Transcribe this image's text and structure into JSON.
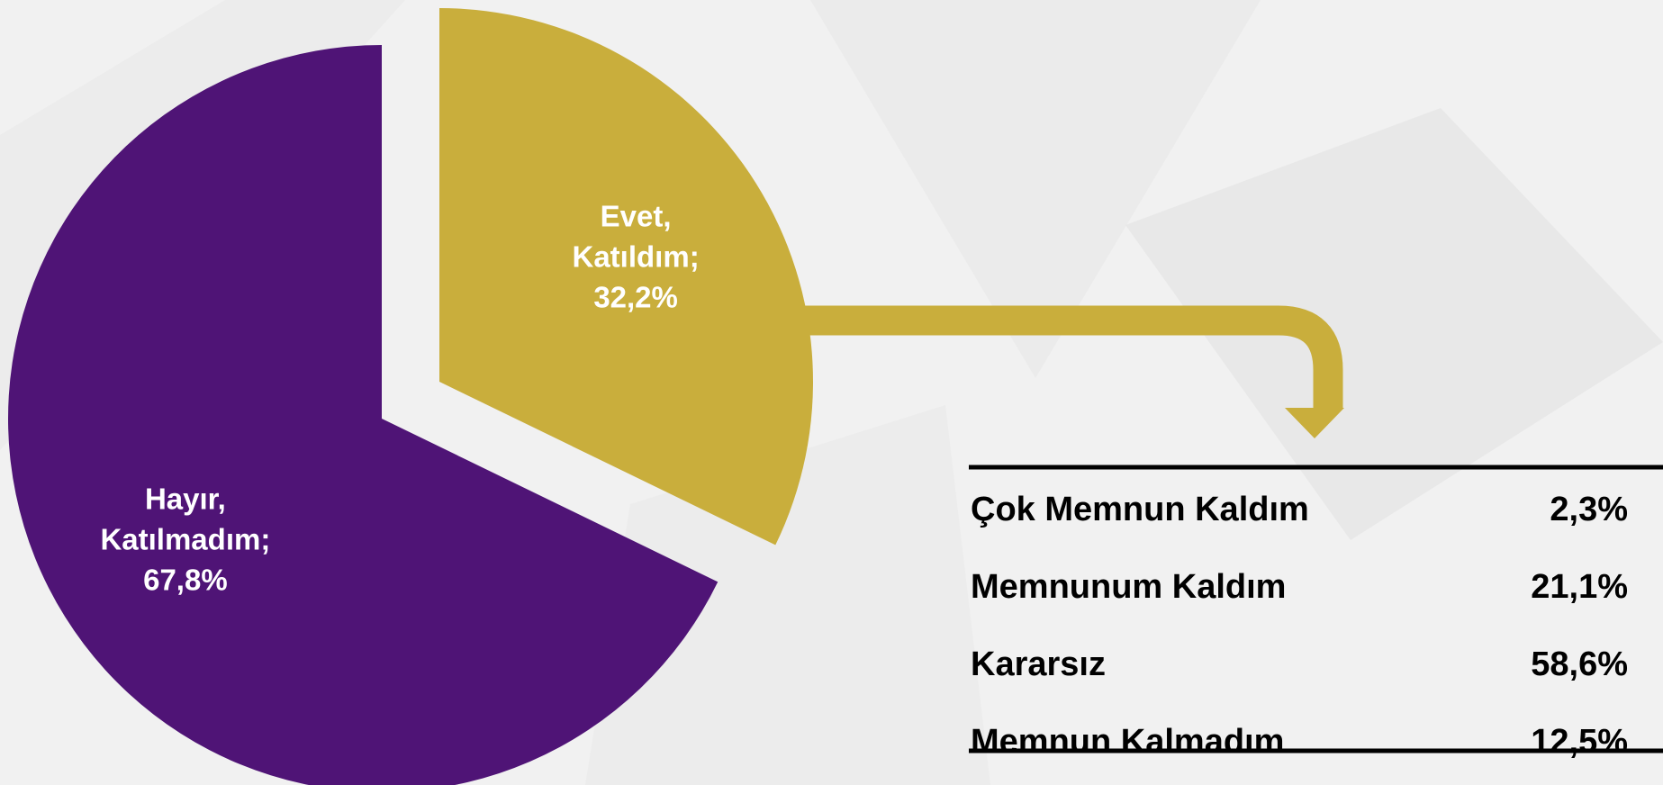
{
  "chart_data": {
    "type": "pie",
    "categories": [
      "Evet, Katıldım",
      "Hayır, Katılmadım"
    ],
    "values": [
      32.2,
      67.8
    ],
    "value_labels": [
      "32,2%",
      "67,8%"
    ],
    "label_separator": ";",
    "colors": [
      "#c9ae3c",
      "#4f1476"
    ]
  },
  "table": {
    "rows": [
      [
        "Çok Memnun Kaldım",
        "2,3%"
      ],
      [
        "Memnunum Kaldım",
        "21,1%"
      ],
      [
        "Kararsız",
        "58,6%"
      ],
      [
        "Memnun Kalmadım",
        "12,5%"
      ]
    ]
  }
}
